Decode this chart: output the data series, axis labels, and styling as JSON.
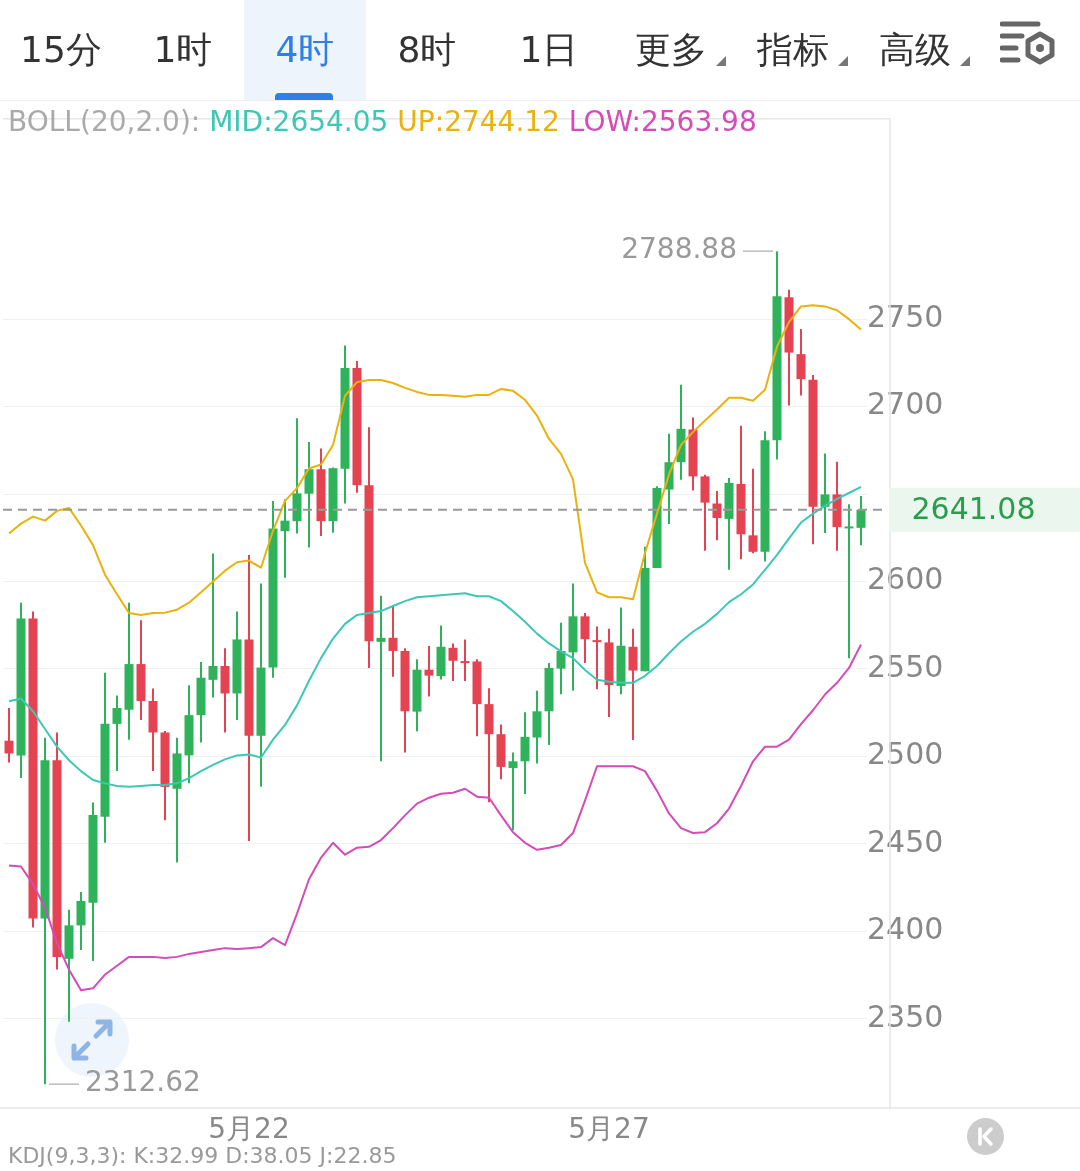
{
  "chart_data": {
    "type": "candlestick",
    "categories": [
      null,
      null,
      null,
      null,
      null,
      null,
      null,
      null,
      null,
      null,
      null,
      null,
      null,
      null,
      null,
      null,
      null,
      null,
      null,
      null,
      "5月22",
      null,
      null,
      null,
      null,
      null,
      null,
      null,
      null,
      null,
      null,
      null,
      null,
      null,
      null,
      null,
      null,
      null,
      null,
      null,
      null,
      null,
      null,
      null,
      null,
      null,
      null,
      null,
      null,
      null,
      "5月27",
      null,
      null,
      null,
      null,
      null,
      null,
      null,
      null,
      null,
      null,
      null,
      null,
      null,
      null,
      null,
      null,
      null,
      null,
      null,
      null,
      null
    ],
    "ohlc": [
      [
        2509,
        2527.7,
        2496.6,
        2501.7
      ],
      [
        2500.6,
        2587.9,
        2487.6,
        2578.9
      ],
      [
        2578.9,
        2582.9,
        2402.2,
        2407.3
      ],
      [
        2407.3,
        2510.7,
        2312.62,
        2497.8
      ],
      [
        2497.8,
        2513.7,
        2378.2,
        2385.4
      ],
      [
        2384.3,
        2412.4,
        2348.3,
        2403.4
      ],
      [
        2403.4,
        2422.5,
        2389.3,
        2417.4
      ],
      [
        2416.3,
        2473.6,
        2383.1,
        2466.5
      ],
      [
        2465.5,
        2547.8,
        2450.6,
        2518.7
      ],
      [
        2518.6,
        2534.8,
        2491.6,
        2527.7
      ],
      [
        2526.7,
        2587.9,
        2509.6,
        2552.8
      ],
      [
        2552.8,
        2577.9,
        2520.8,
        2531.7
      ],
      [
        2531.7,
        2538.8,
        2491.6,
        2513.7
      ],
      [
        2513.7,
        2514.6,
        2463.5,
        2482.6
      ],
      [
        2481.5,
        2510.7,
        2439.3,
        2501.7
      ],
      [
        2500.6,
        2540.7,
        2484.6,
        2523.6
      ],
      [
        2523.6,
        2554,
        2507.9,
        2545
      ],
      [
        2543.8,
        2616,
        2533.7,
        2551.7
      ],
      [
        2551.7,
        2561.8,
        2513.7,
        2536
      ],
      [
        2536,
        2582.9,
        2520.8,
        2566.9
      ],
      [
        2566.9,
        2615.2,
        2451.7,
        2511.8
      ],
      [
        2511.8,
        2598.9,
        2482.6,
        2550.8
      ],
      [
        2550.8,
        2646,
        2545,
        2630.3
      ],
      [
        2628.8,
        2647,
        2602.1,
        2634.8
      ],
      [
        2634.5,
        2693.3,
        2627.4,
        2650.4
      ],
      [
        2650.2,
        2679.8,
        2619.5,
        2664.2
      ],
      [
        2664.2,
        2676,
        2626,
        2634.5
      ],
      [
        2634.5,
        2665.2,
        2627.9,
        2664.8
      ],
      [
        2664.4,
        2735,
        2644.6,
        2722.1
      ],
      [
        2722,
        2726.1,
        2650.7,
        2655.1
      ],
      [
        2655.1,
        2688.2,
        2550.6,
        2565.9
      ],
      [
        2565.5,
        2591.8,
        2497.2,
        2567.8
      ],
      [
        2567.8,
        2586.5,
        2545.5,
        2560.3
      ],
      [
        2560.3,
        2561.8,
        2502.2,
        2525.8
      ],
      [
        2525.6,
        2555.6,
        2514.4,
        2549.6
      ],
      [
        2549.6,
        2563.1,
        2534.3,
        2546.2
      ],
      [
        2545.9,
        2574.9,
        2544,
        2562.7
      ],
      [
        2562.1,
        2564.6,
        2543.1,
        2554.7
      ],
      [
        2554.5,
        2566.9,
        2543.1,
        2554.3
      ],
      [
        2554.3,
        2555.6,
        2511.6,
        2529.9
      ],
      [
        2529.9,
        2539,
        2473.8,
        2512.7
      ],
      [
        2512.7,
        2518.2,
        2486.9,
        2494
      ],
      [
        2493.4,
        2502.2,
        2457.9,
        2497.2
      ],
      [
        2497.2,
        2525.3,
        2478.5,
        2511.2
      ],
      [
        2510.8,
        2537.5,
        2495.9,
        2525.8
      ],
      [
        2525.8,
        2553.4,
        2506.6,
        2550.6
      ],
      [
        2550.2,
        2576.4,
        2535.6,
        2560.3
      ],
      [
        2559.5,
        2598.9,
        2537.5,
        2580.1
      ],
      [
        2580.1,
        2582,
        2553.4,
        2567
      ],
      [
        2566.5,
        2574.3,
        2538.4,
        2565.6
      ],
      [
        2565.2,
        2573,
        2522.5,
        2540.8
      ],
      [
        2540.3,
        2585.2,
        2535.6,
        2563.3
      ],
      [
        2562.7,
        2573,
        2509.4,
        2549.1
      ],
      [
        2548.7,
        2619.9,
        2548.7,
        2607.7
      ],
      [
        2607.7,
        2654.5,
        2607.7,
        2653.5
      ],
      [
        2652.6,
        2684.5,
        2632.9,
        2668.2
      ],
      [
        2668.2,
        2712.5,
        2658.2,
        2687.3
      ],
      [
        2686.9,
        2693.8,
        2652.1,
        2660.1
      ],
      [
        2660.1,
        2661,
        2617.6,
        2645.1
      ],
      [
        2644.6,
        2651.7,
        2623.6,
        2636.3
      ],
      [
        2635.8,
        2659.2,
        2606.7,
        2656.4
      ],
      [
        2655.8,
        2689.1,
        2612.7,
        2627
      ],
      [
        2626.4,
        2664.4,
        2616.1,
        2617
      ],
      [
        2617,
        2685.9,
        2611.4,
        2680.7
      ],
      [
        2680.7,
        2788.88,
        2669.8,
        2763.1
      ],
      [
        2762.5,
        2766.8,
        2700.7,
        2730.9
      ],
      [
        2730,
        2744.4,
        2706.4,
        2715.7
      ],
      [
        2715.4,
        2718.1,
        2621.3,
        2642.7
      ],
      [
        2642.7,
        2673.2,
        2627.7,
        2649.8
      ],
      [
        2649.8,
        2668.5,
        2617.6,
        2631.1
      ],
      [
        2631.1,
        2644.2,
        2556.2,
        2631.5
      ],
      [
        2630.7,
        2648.9,
        2620.8,
        2641.08
      ]
    ],
    "colors": [
      "#e54352",
      "#2fb35a",
      "#e54352",
      "#2fb35a",
      "#e54352",
      "#2fb35a",
      "#2fb35a",
      "#2fb35a",
      "#2fb35a",
      "#2fb35a",
      "#2fb35a",
      "#e54352",
      "#e54352",
      "#e54352",
      "#2fb35a",
      "#2fb35a",
      "#2fb35a",
      "#2fb35a",
      "#e54352",
      "#2fb35a",
      "#e54352",
      "#2fb35a",
      "#2fb35a",
      "#2fb35a",
      "#2fb35a",
      "#2fb35a",
      "#e54352",
      "#2fb35a",
      "#2fb35a",
      "#e54352",
      "#e54352",
      "#2fb35a",
      "#e54352",
      "#e54352",
      "#2fb35a",
      "#e54352",
      "#2fb35a",
      "#e54352",
      "#e54352",
      "#e54352",
      "#e54352",
      "#e54352",
      "#2fb35a",
      "#2fb35a",
      "#2fb35a",
      "#2fb35a",
      "#2fb35a",
      "#2fb35a",
      "#e54352",
      "#e54352",
      "#e54352",
      "#2fb35a",
      "#e54352",
      "#2fb35a",
      "#2fb35a",
      "#2fb35a",
      "#2fb35a",
      "#e54352",
      "#e54352",
      "#e54352",
      "#2fb35a",
      "#e54352",
      "#e54352",
      "#2fb35a",
      "#2fb35a",
      "#e54352",
      "#e54352",
      "#e54352",
      "#2fb35a",
      "#e54352",
      "#2fb35a",
      "#2fb35a"
    ],
    "series": [
      {
        "type": "line",
        "name": "MID:2654.05",
        "color": "#3cc8b4",
        "values": [
          2531.5,
          2533.1,
          2525.8,
          2515.7,
          2505.6,
          2497.8,
          2491.6,
          2486.5,
          2484.6,
          2483.1,
          2482.6,
          2483.1,
          2483.7,
          2483.7,
          2484.6,
          2487.6,
          2491.6,
          2495.2,
          2498.3,
          2500.6,
          2501.1,
          2499.4,
          2509.6,
          2518,
          2529.2,
          2543.3,
          2556.2,
          2567.4,
          2575.8,
          2580.9,
          2582,
          2583.1,
          2586,
          2588.8,
          2591,
          2591.6,
          2592.1,
          2592.7,
          2593.3,
          2591.6,
          2591.6,
          2588.8,
          2583.1,
          2577,
          2570.2,
          2564.6,
          2560.1,
          2556.2,
          2549.4,
          2543.8,
          2542.7,
          2542.1,
          2542.1,
          2546.1,
          2551.7,
          2559,
          2565.7,
          2571.3,
          2575.8,
          2581.5,
          2588.2,
          2592.7,
          2598.3,
          2606.7,
          2615.2,
          2624.7,
          2633.7,
          2638.8,
          2643.3,
          2647.2,
          2650.6,
          2654.05
        ]
      },
      {
        "type": "line",
        "name": "UP:2744.12",
        "color": "#eab20c",
        "values": [
          2627.5,
          2633.1,
          2637.1,
          2634.8,
          2640.4,
          2642.1,
          2632,
          2620.8,
          2603.9,
          2592.7,
          2582,
          2580.9,
          2582,
          2582.2,
          2583.9,
          2587.9,
          2593.8,
          2600,
          2606.2,
          2611,
          2612,
          2607.9,
          2629,
          2646.1,
          2653.4,
          2664.6,
          2666.9,
          2678.1,
          2706.2,
          2714,
          2715.2,
          2715.2,
          2713.5,
          2710.7,
          2708.4,
          2706.7,
          2706.7,
          2706.2,
          2705.6,
          2706.7,
          2706.7,
          2710.1,
          2709,
          2703.9,
          2694.9,
          2681.5,
          2673,
          2658.4,
          2610.7,
          2593.8,
          2591,
          2591,
          2589.9,
          2616.3,
          2638.8,
          2661.2,
          2678.1,
          2685.4,
          2692.1,
          2698.3,
          2705.1,
          2705.1,
          2703.4,
          2709.6,
          2734.3,
          2748.3,
          2757.3,
          2757.9,
          2757.3,
          2755.1,
          2750,
          2744.12
        ]
      },
      {
        "type": "line",
        "name": "LOW:2563.98",
        "color": "#d54bb8",
        "values": [
          2437.6,
          2437.1,
          2427,
          2413.5,
          2393.3,
          2378.1,
          2366.3,
          2367.4,
          2375.3,
          2380.3,
          2385.4,
          2385.4,
          2385.4,
          2384.8,
          2385.4,
          2387.1,
          2388.2,
          2389.3,
          2390.4,
          2389.9,
          2390.4,
          2391,
          2396.1,
          2392.1,
          2410.1,
          2429.8,
          2442.1,
          2450.6,
          2443.8,
          2447.8,
          2448.3,
          2452.2,
          2459,
          2466.3,
          2473,
          2476.4,
          2478.7,
          2479.2,
          2481.5,
          2477,
          2476.4,
          2466.3,
          2456.7,
          2450.6,
          2446.6,
          2447.8,
          2449.4,
          2456.2,
          2474.7,
          2494.4,
          2494.4,
          2494.4,
          2494.4,
          2491.6,
          2480.3,
          2467.4,
          2459,
          2456.2,
          2456.7,
          2461.8,
          2470.2,
          2483.1,
          2497.2,
          2505.6,
          2505.6,
          2509.6,
          2518.5,
          2526.4,
          2535.4,
          2542.1,
          2550.6,
          2563.98
        ]
      }
    ],
    "legend_title": "BOLL(20,2.0):",
    "legend": "top",
    "ylim": [
      2299,
      2865
    ],
    "yticks": [
      2350,
      2400,
      2450,
      2500,
      2550,
      2600,
      {
        "value": 2650,
        "label": null
      },
      2700,
      2750
    ],
    "grid": "y",
    "ref_lines": [
      {
        "axis": "y",
        "value": 2641.08,
        "label": "2641.08",
        "color": "#999999",
        "line_style": "dashed"
      }
    ],
    "annotations": [
      "15分",
      "1时",
      "4时",
      "8时",
      "1日",
      "更多",
      "指标",
      "高级",
      "KDJ(9,3,3): K:32.99 D:38.05 J:22.85",
      "2788.88",
      "2312.62"
    ]
  }
}
